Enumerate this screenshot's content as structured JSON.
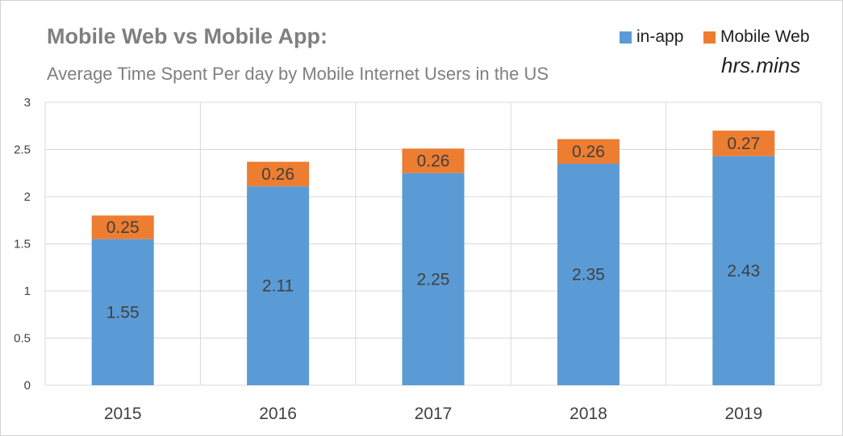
{
  "chart_data": {
    "type": "bar",
    "stacked": true,
    "title": "Mobile Web vs Mobile App:",
    "subtitle": "Average Time Spent Per day by Mobile Internet Users in the US",
    "units_label": "hrs.mins",
    "xlabel": "",
    "ylabel": "",
    "categories": [
      "2015",
      "2016",
      "2017",
      "2018",
      "2019"
    ],
    "series": [
      {
        "name": "in-app",
        "color": "#5b9bd5",
        "values": [
          1.55,
          2.11,
          2.25,
          2.35,
          2.43
        ],
        "value_labels": [
          "1.55",
          "2.11",
          "2.25",
          "2.35",
          "2.43"
        ]
      },
      {
        "name": "Mobile Web",
        "color": "#ed7d31",
        "values": [
          0.25,
          0.26,
          0.26,
          0.26,
          0.27
        ],
        "value_labels": [
          "0.25",
          "0.26",
          "0.26",
          "0.26",
          "0.27"
        ]
      }
    ],
    "ylim": [
      0,
      3
    ],
    "yticks": [
      0,
      0.5,
      1,
      1.5,
      2,
      2.5,
      3
    ],
    "ytick_labels": [
      "0",
      "0.5",
      "1",
      "1.5",
      "2",
      "2.5",
      "3"
    ],
    "grid": true,
    "legend_position": "top-right"
  }
}
